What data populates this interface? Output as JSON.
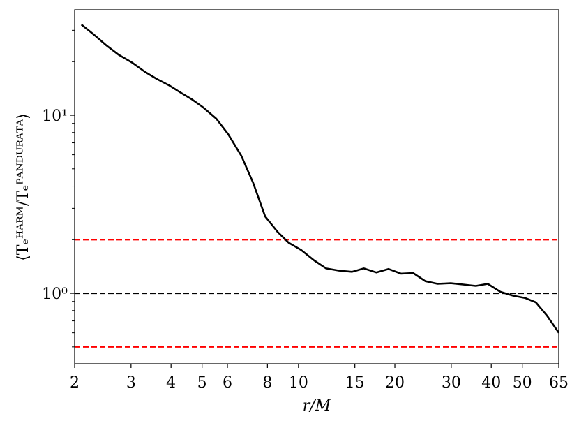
{
  "chart_data": {
    "type": "line",
    "xlabel": "r/M",
    "ylabel": "⟨Tₑᴴᴬᴿᴹ/Tₑᴾᴬᴺᴰᵁᴿᴬᵀᴬ⟩",
    "xscale": "log",
    "yscale": "log",
    "x": [
      2.1,
      2.3,
      2.51,
      2.74,
      3.03,
      3.32,
      3.61,
      3.95,
      4.26,
      4.64,
      5.03,
      5.54,
      6.03,
      6.63,
      7.22,
      7.87,
      8.61,
      9.33,
      10.2,
      11.2,
      12.2,
      13.4,
      14.7,
      16.0,
      17.5,
      19.1,
      20.9,
      22.8,
      24.9,
      27.2,
      29.9,
      32.7,
      35.8,
      39.0,
      42.7,
      46.7,
      51.1,
      55.1,
      59.7,
      65
    ],
    "values": [
      32.3,
      28.3,
      24.7,
      21.9,
      19.7,
      17.5,
      16.0,
      14.7,
      13.5,
      12.3,
      11.1,
      9.56,
      7.83,
      5.92,
      4.17,
      2.7,
      2.21,
      1.92,
      1.75,
      1.53,
      1.38,
      1.34,
      1.32,
      1.38,
      1.31,
      1.37,
      1.29,
      1.3,
      1.17,
      1.13,
      1.14,
      1.12,
      1.1,
      1.13,
      1.02,
      0.97,
      0.94,
      0.89,
      0.75,
      0.6
    ],
    "color": "#000000",
    "xlim": [
      2,
      65
    ],
    "ylim": [
      0.402,
      39.1
    ],
    "xticks": [
      2,
      3,
      4,
      5,
      6,
      8,
      10,
      15,
      20,
      30,
      40,
      50,
      65
    ],
    "yticks": [
      {
        "value": 1,
        "label": "10⁰"
      },
      {
        "value": 10,
        "label": "10¹"
      }
    ],
    "yticks_minor": [
      0.5,
      0.6,
      0.7,
      0.8,
      0.9,
      2,
      3,
      4,
      5,
      6,
      7,
      8,
      9,
      20,
      30
    ],
    "hlines": [
      {
        "y": 2,
        "color": "#ff0000"
      },
      {
        "y": 1,
        "color": "#000000"
      },
      {
        "y": 0.5,
        "color": "#ff0000"
      }
    ]
  }
}
